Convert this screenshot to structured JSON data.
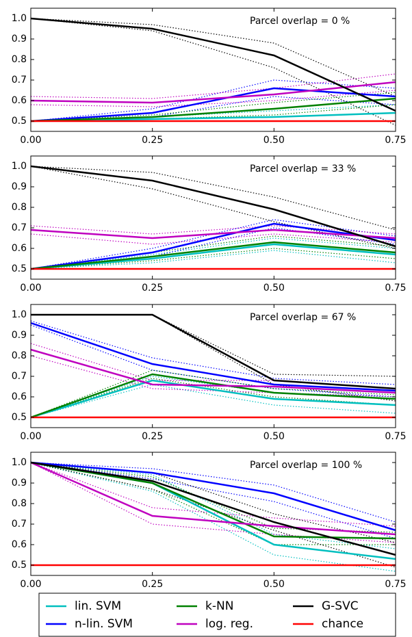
{
  "chart_data": [
    {
      "type": "line",
      "annotation": "Parcel overlap = 0 %",
      "x": [
        0,
        0.25,
        0.5,
        0.75
      ],
      "xlim": [
        0,
        0.75
      ],
      "xticks": [
        {
          "value": 0,
          "label": "0.00"
        },
        0.25,
        {
          "value": 0.5,
          "label": "0.50"
        },
        0.75
      ],
      "ylim": [
        0.45,
        1.05
      ],
      "yticks": [
        0.5,
        0.6,
        0.7,
        0.8,
        0.9,
        {
          "value": 1,
          "label": "1.0"
        }
      ],
      "series": [
        {
          "name": "lin. SVM",
          "color": "#00bfbf",
          "values": [
            0.5,
            0.51,
            0.52,
            0.54
          ],
          "lower": [
            0.5,
            0.5,
            0.5,
            0.5
          ],
          "upper": [
            0.5,
            0.52,
            0.55,
            0.58
          ]
        },
        {
          "name": "n-lin. SVM",
          "color": "#0000ff",
          "values": [
            0.5,
            0.54,
            0.66,
            0.62
          ],
          "lower": [
            0.5,
            0.52,
            0.62,
            0.58
          ],
          "upper": [
            0.5,
            0.56,
            0.7,
            0.66
          ]
        },
        {
          "name": "k-NN",
          "color": "#008000",
          "values": [
            0.5,
            0.52,
            0.56,
            0.61
          ],
          "lower": [
            0.5,
            0.51,
            0.53,
            0.58
          ],
          "upper": [
            0.5,
            0.53,
            0.59,
            0.64
          ]
        },
        {
          "name": "log. reg.",
          "color": "#bf00bf",
          "values": [
            0.6,
            0.59,
            0.63,
            0.69
          ],
          "lower": [
            0.58,
            0.57,
            0.6,
            0.65
          ],
          "upper": [
            0.62,
            0.61,
            0.66,
            0.73
          ]
        },
        {
          "name": "G-SVC",
          "color": "#000000",
          "values": [
            1,
            0.95,
            0.82,
            0.55
          ],
          "lower": [
            1,
            0.94,
            0.76,
            0.48
          ],
          "upper": [
            1,
            0.97,
            0.88,
            0.62
          ]
        },
        {
          "name": "chance",
          "color": "#ff0000",
          "values": [
            0.5,
            0.5,
            0.5,
            0.5
          ]
        }
      ]
    },
    {
      "type": "line",
      "annotation": "Parcel overlap = 33 %",
      "x": [
        0,
        0.25,
        0.5,
        0.75
      ],
      "xlim": [
        0,
        0.75
      ],
      "xticks": [
        {
          "value": 0,
          "label": "0.00"
        },
        0.25,
        {
          "value": 0.5,
          "label": "0.50"
        },
        0.75
      ],
      "ylim": [
        0.45,
        1.05
      ],
      "yticks": [
        0.5,
        0.6,
        0.7,
        0.8,
        0.9,
        {
          "value": 1,
          "label": "1.0"
        }
      ],
      "series": [
        {
          "name": "lin. SVM",
          "color": "#00bfbf",
          "values": [
            0.5,
            0.55,
            0.62,
            0.57
          ],
          "lower": [
            0.5,
            0.53,
            0.59,
            0.53
          ],
          "upper": [
            0.5,
            0.57,
            0.65,
            0.6
          ]
        },
        {
          "name": "n-lin. SVM",
          "color": "#0000ff",
          "values": [
            0.5,
            0.58,
            0.72,
            0.64
          ],
          "lower": [
            0.5,
            0.56,
            0.7,
            0.62
          ],
          "upper": [
            0.5,
            0.6,
            0.74,
            0.66
          ]
        },
        {
          "name": "k-NN",
          "color": "#008000",
          "values": [
            0.5,
            0.56,
            0.63,
            0.58
          ],
          "lower": [
            0.5,
            0.54,
            0.6,
            0.55
          ],
          "upper": [
            0.5,
            0.58,
            0.66,
            0.61
          ]
        },
        {
          "name": "log. reg.",
          "color": "#bf00bf",
          "values": [
            0.69,
            0.65,
            0.69,
            0.65
          ],
          "lower": [
            0.67,
            0.62,
            0.67,
            0.63
          ],
          "upper": [
            0.71,
            0.67,
            0.71,
            0.67
          ]
        },
        {
          "name": "G-SVC",
          "color": "#000000",
          "values": [
            1,
            0.93,
            0.79,
            0.61
          ],
          "lower": [
            1,
            0.89,
            0.73,
            0.6
          ],
          "upper": [
            1,
            0.97,
            0.85,
            0.69
          ]
        },
        {
          "name": "chance",
          "color": "#ff0000",
          "values": [
            0.5,
            0.5,
            0.5,
            0.5
          ]
        }
      ]
    },
    {
      "type": "line",
      "annotation": "Parcel overlap = 67 %",
      "x": [
        0,
        0.25,
        0.5,
        0.75
      ],
      "xlim": [
        0,
        0.75
      ],
      "xticks": [
        {
          "value": 0,
          "label": "0.00"
        },
        0.25,
        {
          "value": 0.5,
          "label": "0.50"
        },
        0.75
      ],
      "ylim": [
        0.45,
        1.05
      ],
      "yticks": [
        0.5,
        0.6,
        0.7,
        0.8,
        0.9,
        {
          "value": 1,
          "label": "1.0"
        }
      ],
      "series": [
        {
          "name": "lin. SVM",
          "color": "#00bfbf",
          "values": [
            0.5,
            0.68,
            0.59,
            0.56
          ],
          "lower": [
            0.5,
            0.66,
            0.56,
            0.52
          ],
          "upper": [
            0.5,
            0.7,
            0.62,
            0.6
          ]
        },
        {
          "name": "n-lin. SVM",
          "color": "#0000ff",
          "values": [
            0.96,
            0.76,
            0.66,
            0.63
          ],
          "lower": [
            0.95,
            0.73,
            0.64,
            0.6
          ],
          "upper": [
            0.97,
            0.79,
            0.69,
            0.66
          ]
        },
        {
          "name": "k-NN",
          "color": "#008000",
          "values": [
            0.5,
            0.71,
            0.62,
            0.59
          ],
          "lower": [
            0.5,
            0.69,
            0.6,
            0.56
          ],
          "upper": [
            0.5,
            0.73,
            0.64,
            0.61
          ]
        },
        {
          "name": "log. reg.",
          "color": "#bf00bf",
          "values": [
            0.83,
            0.66,
            0.65,
            0.62
          ],
          "lower": [
            0.8,
            0.64,
            0.62,
            0.6
          ],
          "upper": [
            0.86,
            0.68,
            0.68,
            0.64
          ]
        },
        {
          "name": "G-SVC",
          "color": "#000000",
          "values": [
            1,
            1,
            0.68,
            0.64
          ],
          "lower": [
            1,
            1,
            0.66,
            0.58
          ],
          "upper": [
            1,
            1,
            0.71,
            0.7
          ]
        },
        {
          "name": "chance",
          "color": "#ff0000",
          "values": [
            0.5,
            0.5,
            0.5,
            0.5
          ]
        }
      ]
    },
    {
      "type": "line",
      "annotation": "Parcel overlap = 100 %",
      "x": [
        0,
        0.25,
        0.5,
        0.75
      ],
      "xlim": [
        0,
        0.75
      ],
      "xticks": [
        {
          "value": 0,
          "label": "0.00"
        },
        0.25,
        {
          "value": 0.5,
          "label": "0.50"
        },
        0.75
      ],
      "ylim": [
        0.45,
        1.05
      ],
      "yticks": [
        0.5,
        0.6,
        0.7,
        0.8,
        0.9,
        {
          "value": 1,
          "label": "1.0"
        }
      ],
      "series": [
        {
          "name": "lin. SVM",
          "color": "#00bfbf",
          "values": [
            1,
            0.9,
            0.6,
            0.53
          ],
          "lower": [
            1,
            0.86,
            0.55,
            0.47
          ],
          "upper": [
            1,
            0.94,
            0.65,
            0.58
          ]
        },
        {
          "name": "n-lin. SVM",
          "color": "#0000ff",
          "values": [
            1,
            0.95,
            0.85,
            0.67
          ],
          "lower": [
            1,
            0.92,
            0.81,
            0.63
          ],
          "upper": [
            1,
            0.97,
            0.89,
            0.71
          ]
        },
        {
          "name": "k-NN",
          "color": "#008000",
          "values": [
            1,
            0.9,
            0.64,
            0.63
          ],
          "lower": [
            1,
            0.87,
            0.6,
            0.6
          ],
          "upper": [
            1,
            0.93,
            0.68,
            0.66
          ]
        },
        {
          "name": "log. reg.",
          "color": "#bf00bf",
          "values": [
            1,
            0.74,
            0.69,
            0.65
          ],
          "lower": [
            1,
            0.7,
            0.65,
            0.61
          ],
          "upper": [
            1,
            0.78,
            0.73,
            0.69
          ]
        },
        {
          "name": "G-SVC",
          "color": "#000000",
          "values": [
            1,
            0.91,
            0.71,
            0.55
          ],
          "lower": [
            1,
            0.87,
            0.67,
            0.49
          ],
          "upper": [
            1,
            0.95,
            0.75,
            0.61
          ]
        },
        {
          "name": "chance",
          "color": "#ff0000",
          "values": [
            0.5,
            0.5,
            0.5,
            0.5
          ]
        }
      ]
    }
  ]
}
